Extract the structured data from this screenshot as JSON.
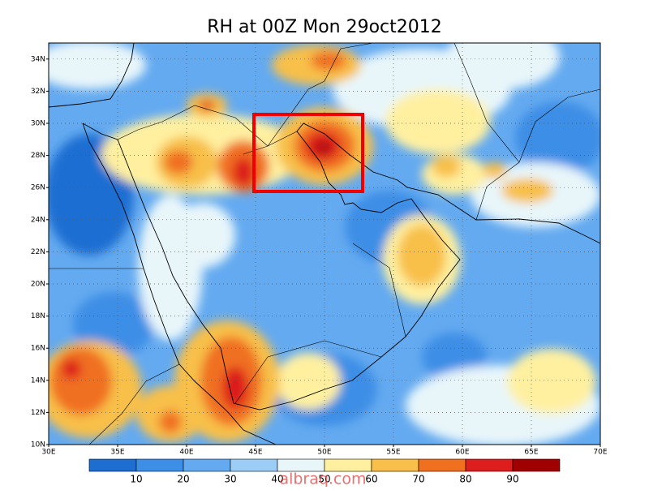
{
  "map": {
    "title": "RH at 00Z Mon 29oct2012",
    "lat_labels": [
      "10N",
      "12N",
      "14N",
      "16N",
      "18N",
      "20N",
      "22N",
      "24N",
      "26N",
      "28N",
      "30N",
      "32N",
      "34N"
    ],
    "lon_labels": [
      "30E",
      "35E",
      "40E",
      "45E",
      "50E",
      "55E",
      "60E",
      "65E",
      "70E"
    ],
    "colorbar": {
      "labels": [
        10,
        20,
        30,
        40,
        50,
        60,
        70,
        80,
        90
      ],
      "colors": [
        "#1e6ed2",
        "#3c8ee6",
        "#64aaf0",
        "#9ccdf7",
        "#e8f6fa",
        "#fff0a0",
        "#f8c04a",
        "#f07020",
        "#dc1e1e",
        "#a00000"
      ]
    },
    "watermark": "albraq.com"
  }
}
